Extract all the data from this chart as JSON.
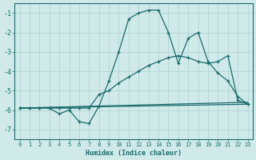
{
  "xlabel": "Humidex (Indice chaleur)",
  "bg_color": "#d0eaea",
  "grid_color": "#b8d8d8",
  "line_color": "#1a6b6b",
  "xlim": [
    -0.5,
    23.5
  ],
  "ylim": [
    -7.5,
    -0.5
  ],
  "yticks": [
    -7,
    -6,
    -5,
    -4,
    -3,
    -2,
    -1
  ],
  "xticks": [
    0,
    1,
    2,
    3,
    4,
    5,
    6,
    7,
    8,
    9,
    10,
    11,
    12,
    13,
    14,
    15,
    16,
    17,
    18,
    19,
    20,
    21,
    22,
    23
  ],
  "line1_x": [
    0,
    1,
    2,
    3,
    4,
    5,
    6,
    7,
    8,
    9,
    10,
    11,
    12,
    13,
    14,
    15,
    16,
    17,
    18,
    19,
    20,
    21,
    22,
    23
  ],
  "line1_y": [
    -5.9,
    -5.9,
    -5.9,
    -5.9,
    -6.2,
    -6.0,
    -6.6,
    -6.7,
    -5.8,
    -4.5,
    -3.0,
    -1.3,
    -1.0,
    -0.85,
    -0.85,
    -2.0,
    -3.6,
    -2.3,
    -2.0,
    -3.5,
    -4.1,
    -4.5,
    -5.3,
    -5.7
  ],
  "line2_x": [
    0,
    1,
    2,
    3,
    4,
    5,
    6,
    7,
    8,
    9,
    10,
    11,
    12,
    13,
    14,
    15,
    16,
    17,
    18,
    19,
    20,
    21,
    22,
    23
  ],
  "line2_y": [
    -5.9,
    -5.9,
    -5.9,
    -5.9,
    -5.9,
    -5.9,
    -5.9,
    -5.9,
    -5.2,
    -5.0,
    -4.6,
    -4.3,
    -4.0,
    -3.7,
    -3.5,
    -3.3,
    -3.2,
    -3.3,
    -3.5,
    -3.6,
    -3.5,
    -3.2,
    -5.5,
    -5.7
  ],
  "line3_x": [
    0,
    23
  ],
  "line3_y": [
    -5.9,
    -5.6
  ],
  "line4_x": [
    0,
    23
  ],
  "line4_y": [
    -5.9,
    -5.7
  ]
}
